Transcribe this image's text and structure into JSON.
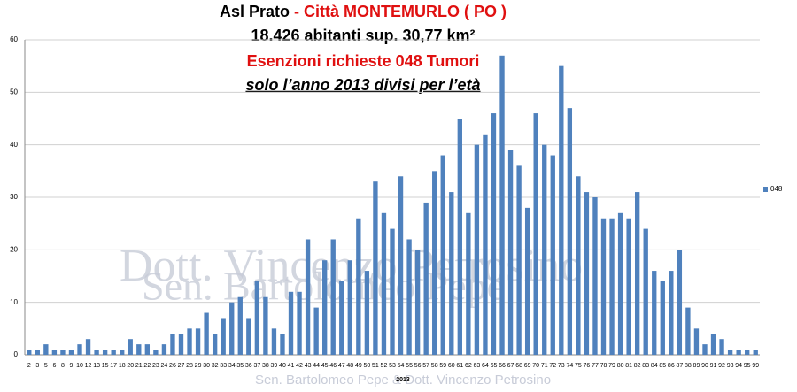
{
  "chart_data": {
    "type": "bar",
    "title_black": "Asl Prato",
    "title_red": "- Città MONTEMURLO ( PO )",
    "subtitle": "18.426 abitanti sup. 30,77 km²",
    "subtitle_red": "Esenzioni richieste 048 Tumori",
    "subtitle_italic": "solo l’anno 2013 divisi per l’età",
    "watermarks": [
      "Sen. Bartolomeo Pepe",
      "Dott. Vincenzo Petrosino"
    ],
    "footer": "Sen. Bartolomeo Pepe &  Dott. Vincenzo Petrosino",
    "x_label": "2013",
    "categories": [
      "2",
      "3",
      "5",
      "6",
      "8",
      "9",
      "10",
      "12",
      "13",
      "15",
      "17",
      "18",
      "20",
      "21",
      "22",
      "23",
      "24",
      "26",
      "27",
      "28",
      "29",
      "30",
      "32",
      "33",
      "34",
      "35",
      "36",
      "37",
      "38",
      "39",
      "40",
      "41",
      "42",
      "43",
      "44",
      "45",
      "46",
      "47",
      "48",
      "49",
      "50",
      "51",
      "52",
      "53",
      "54",
      "55",
      "56",
      "57",
      "58",
      "59",
      "60",
      "61",
      "62",
      "63",
      "64",
      "65",
      "66",
      "67",
      "68",
      "69",
      "70",
      "71",
      "72",
      "73",
      "74",
      "75",
      "76",
      "77",
      "78",
      "79",
      "80",
      "81",
      "82",
      "83",
      "84",
      "85",
      "86",
      "87",
      "88",
      "89",
      "90",
      "91",
      "92",
      "93",
      "94",
      "95",
      "99"
    ],
    "series": [
      {
        "name": "048",
        "color": "#4f81bd",
        "values": [
          1,
          1,
          2,
          1,
          1,
          1,
          2,
          3,
          1,
          1,
          1,
          1,
          3,
          2,
          2,
          1,
          2,
          4,
          4,
          5,
          5,
          8,
          4,
          7,
          10,
          11,
          7,
          14,
          11,
          5,
          4,
          12,
          12,
          22,
          9,
          18,
          22,
          14,
          18,
          26,
          16,
          33,
          27,
          24,
          34,
          22,
          20,
          29,
          35,
          38,
          31,
          45,
          27,
          40,
          42,
          46,
          57,
          39,
          36,
          28,
          46,
          40,
          38,
          55,
          47,
          34,
          31,
          30,
          26,
          26,
          27,
          26,
          31,
          24,
          16,
          14,
          16,
          20,
          9,
          5,
          2,
          4,
          3,
          1,
          1,
          1,
          1
        ]
      }
    ],
    "ylim": [
      0,
      60
    ],
    "yticks": [
      0,
      10,
      20,
      30,
      40,
      50,
      60
    ],
    "grid": true,
    "legend": "right"
  }
}
